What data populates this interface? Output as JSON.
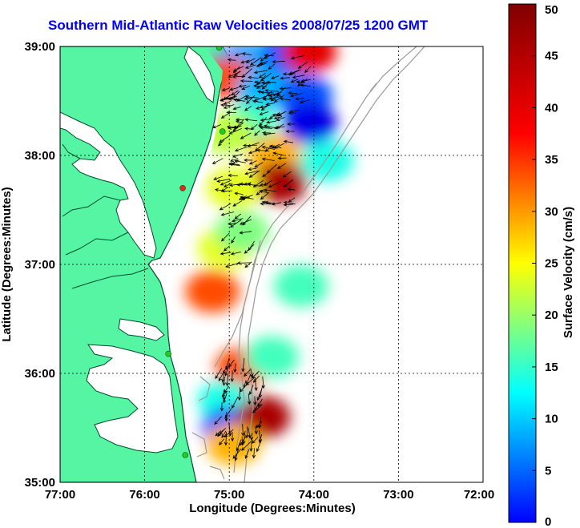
{
  "title": "Southern Mid-Atlantic Raw Velocities 2008/07/25 1200 GMT",
  "map": {
    "xlabel": "Longitude (Degrees:Minutes)",
    "ylabel": "Latitude (Degrees:Minutes)",
    "x_ticks": [
      "77:00",
      "76:00",
      "75:00",
      "74:00",
      "73:00",
      "72:00"
    ],
    "y_ticks": [
      "39:00",
      "38:00",
      "37:00",
      "36:00",
      "35:00"
    ],
    "lon_range": [
      -77,
      -72
    ],
    "lat_range": [
      35,
      39
    ],
    "grid": true,
    "land_color": "#55f5a3",
    "coast_color": "#004d2a",
    "bathymetry_color": "#9a9a9a"
  },
  "colorbar": {
    "label": "Surface Velocity (cm/s)",
    "range": [
      0,
      50
    ],
    "ticks": [
      "50",
      "45",
      "40",
      "35",
      "30",
      "25",
      "20",
      "15",
      "10",
      "5",
      "0"
    ],
    "colormap": "jet"
  },
  "stations": [
    {
      "lon": -75.12,
      "lat": 38.99,
      "color": "#22cc22"
    },
    {
      "lon": -75.08,
      "lat": 38.22,
      "color": "#22cc22"
    },
    {
      "lon": -75.55,
      "lat": 37.7,
      "color": "#ee2222"
    },
    {
      "lon": -75.72,
      "lat": 36.18,
      "color": "#22cc22"
    },
    {
      "lon": -75.52,
      "lat": 35.25,
      "color": "#22cc22"
    }
  ],
  "chart_data": {
    "type": "heatmap",
    "title": "Southern Mid-Atlantic Raw Velocities 2008/07/25 1200 GMT",
    "xlabel": "Longitude (Degrees:Minutes)",
    "ylabel": "Latitude (Degrees:Minutes)",
    "xlim": [
      -77,
      -72
    ],
    "ylim": [
      35,
      39
    ],
    "value_label": "Surface Velocity (cm/s)",
    "vlim": [
      0,
      50
    ],
    "regions": [
      {
        "name": "",
        "lon": -74.35,
        "lat": 38.92,
        "speed": 10
      },
      {
        "name": "",
        "lon": -74.05,
        "lat": 38.95,
        "speed": 45
      },
      {
        "name": "",
        "lon": -74.85,
        "lat": 38.85,
        "speed": 14
      },
      {
        "name": "",
        "lon": -75.02,
        "lat": 38.7,
        "speed": 40
      },
      {
        "name": "",
        "lon": -74.6,
        "lat": 38.6,
        "speed": 15
      },
      {
        "name": "",
        "lon": -74.1,
        "lat": 38.55,
        "speed": 10
      },
      {
        "name": "",
        "lon": -74.05,
        "lat": 38.3,
        "speed": 5
      },
      {
        "name": "",
        "lon": -74.75,
        "lat": 38.3,
        "speed": 22
      },
      {
        "name": "",
        "lon": -75.02,
        "lat": 38.2,
        "speed": 28
      },
      {
        "name": "",
        "lon": -74.45,
        "lat": 38.0,
        "speed": 35
      },
      {
        "name": "",
        "lon": -74.4,
        "lat": 37.75,
        "speed": 48
      },
      {
        "name": "",
        "lon": -74.95,
        "lat": 37.7,
        "speed": 30
      },
      {
        "name": "",
        "lon": -73.85,
        "lat": 37.95,
        "speed": 20
      },
      {
        "name": "",
        "lon": -75.05,
        "lat": 37.15,
        "speed": 30
      },
      {
        "name": "",
        "lon": -74.85,
        "lat": 37.3,
        "speed": 25
      },
      {
        "name": "",
        "lon": -75.2,
        "lat": 36.75,
        "speed": 40
      },
      {
        "name": "",
        "lon": -74.15,
        "lat": 36.8,
        "speed": 22
      },
      {
        "name": "",
        "lon": -74.85,
        "lat": 36.05,
        "speed": 40
      },
      {
        "name": "",
        "lon": -74.5,
        "lat": 36.15,
        "speed": 22
      },
      {
        "name": "",
        "lon": -75.05,
        "lat": 35.75,
        "speed": 20
      },
      {
        "name": "",
        "lon": -75.0,
        "lat": 35.5,
        "speed": 10
      },
      {
        "name": "",
        "lon": -74.6,
        "lat": 35.6,
        "speed": 48
      },
      {
        "name": "",
        "lon": -74.95,
        "lat": 35.35,
        "speed": 35
      }
    ]
  }
}
